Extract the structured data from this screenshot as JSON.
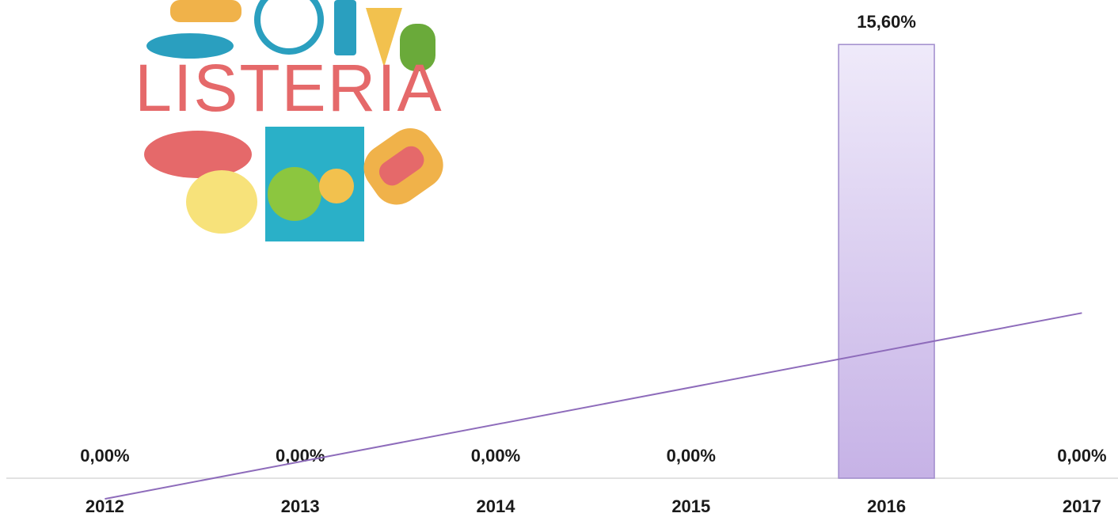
{
  "logo_text": "LISTERIA",
  "chart_data": {
    "type": "bar",
    "categories": [
      "2012",
      "2013",
      "2014",
      "2015",
      "2016",
      "2017"
    ],
    "values": [
      0,
      0,
      0,
      0,
      15.6,
      0
    ],
    "value_labels": [
      "0,00%",
      "0,00%",
      "0,00%",
      "0,00%",
      "15,60%",
      "0,00%"
    ],
    "color": "#c9b6e8",
    "ylim": [
      0,
      17.2
    ],
    "trendline": {
      "type": "linear",
      "color": "#8e6cbb"
    }
  }
}
